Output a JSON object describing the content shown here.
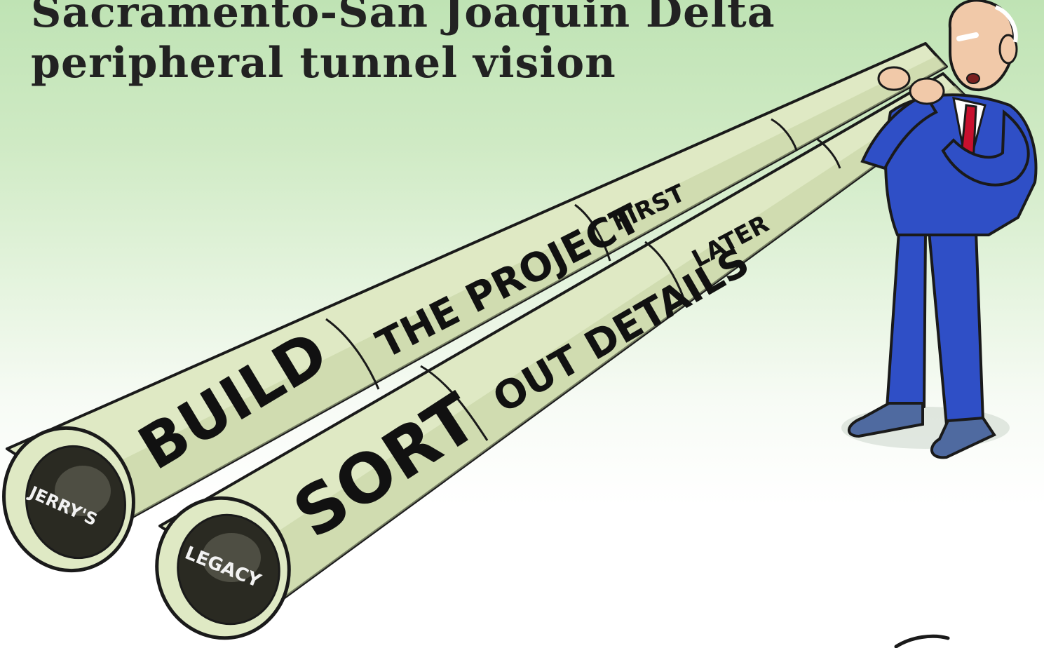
{
  "cartoon": {
    "title_line_1": "Sacramento-San Joaquin Delta",
    "title_line_2": "peripheral tunnel vision",
    "upper_tunnel": {
      "text_large": "BUILD",
      "text_medium": "THE PROJECT",
      "text_small": "FIRST",
      "end_label": "JERRY'S"
    },
    "lower_tunnel": {
      "text_large": "SORT",
      "text_medium": "OUT DETAILS",
      "text_small": "LATER",
      "end_label": "LEGACY"
    }
  },
  "colors": {
    "background_top": "#bfe3b4",
    "tunnel_fill": "#dfe9c4",
    "tunnel_shade": "#c3d2a1",
    "suit": "#2f4fc6",
    "tie": "#c8102e"
  }
}
